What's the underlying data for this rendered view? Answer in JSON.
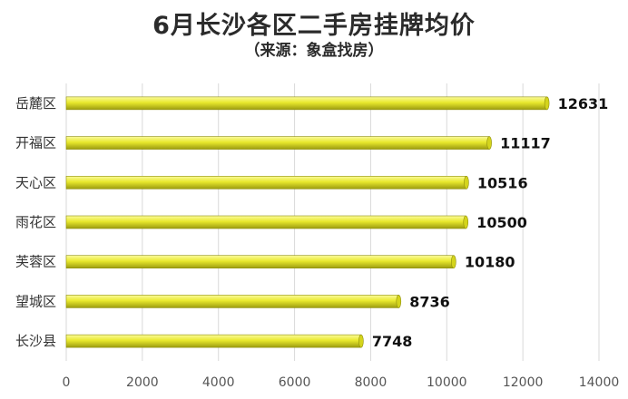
{
  "title": "6月长沙各区二手房挂牌均价",
  "subtitle": "（来源：象盒找房）",
  "chart_data": {
    "type": "bar",
    "orientation": "horizontal",
    "categories": [
      "岳麓区",
      "开福区",
      "天心区",
      "雨花区",
      "芙蓉区",
      "望城区",
      "长沙县"
    ],
    "values": [
      12631,
      11117,
      10516,
      10500,
      10180,
      8736,
      7748
    ],
    "xlim": [
      0,
      14000
    ],
    "xticks": [
      0,
      2000,
      4000,
      6000,
      8000,
      10000,
      12000,
      14000
    ],
    "grid": "vertical",
    "bar_color": "#e6e62a",
    "data_labels": true
  }
}
